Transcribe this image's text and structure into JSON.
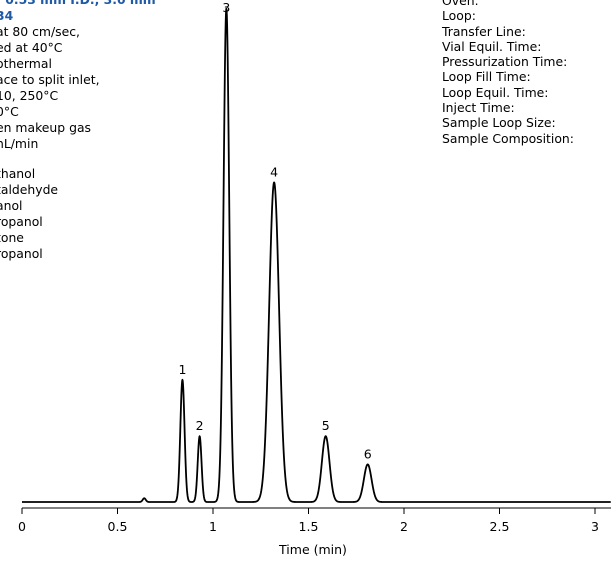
{
  "conditions": {
    "title_lines": [
      ": 0.53 mm I.D., 3.0 mm",
      "34"
    ],
    "lines": [
      "at 80 cm/sec,",
      "ed at 40°C",
      "othermal",
      "ace to split inlet,",
      "10, 250°C",
      "0°C",
      "en makeup gas",
      "nL/min"
    ],
    "peaks": [
      "thanol",
      "taldehyde",
      "anol",
      "ropanol",
      "tone",
      "ropanol"
    ]
  },
  "headspace_labels": [
    "Oven:",
    "Loop:",
    "Transfer Line:",
    "Vial Equil. Time:",
    "Pressurization Time:",
    "Loop Fill Time:",
    "Loop Equil. Time:",
    "Inject Time:",
    "Sample Loop Size:",
    "Sample Composition:"
  ],
  "chart_data": {
    "type": "line",
    "xlabel": "Time (min)",
    "ylabel": "",
    "xlim": [
      0,
      3
    ],
    "x_ticks": [
      0,
      0.5,
      1,
      1.5,
      2,
      2.5,
      3
    ],
    "x_tick_labels": [
      "0",
      "0.5",
      "1",
      "1.5",
      "2",
      "2.5",
      "3"
    ],
    "grid": false,
    "line_color": "#000000",
    "baseline": 0.02,
    "peaks": [
      {
        "label": "1",
        "rt": 0.84,
        "height": 0.26,
        "width": 0.011
      },
      {
        "label": "2",
        "rt": 0.93,
        "height": 0.14,
        "width": 0.01
      },
      {
        "label": "3",
        "rt": 1.07,
        "height": 1.05,
        "width": 0.015
      },
      {
        "label": "4",
        "rt": 1.32,
        "height": 0.68,
        "width": 0.026
      },
      {
        "label": "5",
        "rt": 1.59,
        "height": 0.14,
        "width": 0.02
      },
      {
        "label": "6",
        "rt": 1.81,
        "height": 0.08,
        "width": 0.02
      }
    ],
    "minor_features": [
      {
        "rt": 0.64,
        "height": 0.008,
        "width": 0.008
      }
    ]
  }
}
